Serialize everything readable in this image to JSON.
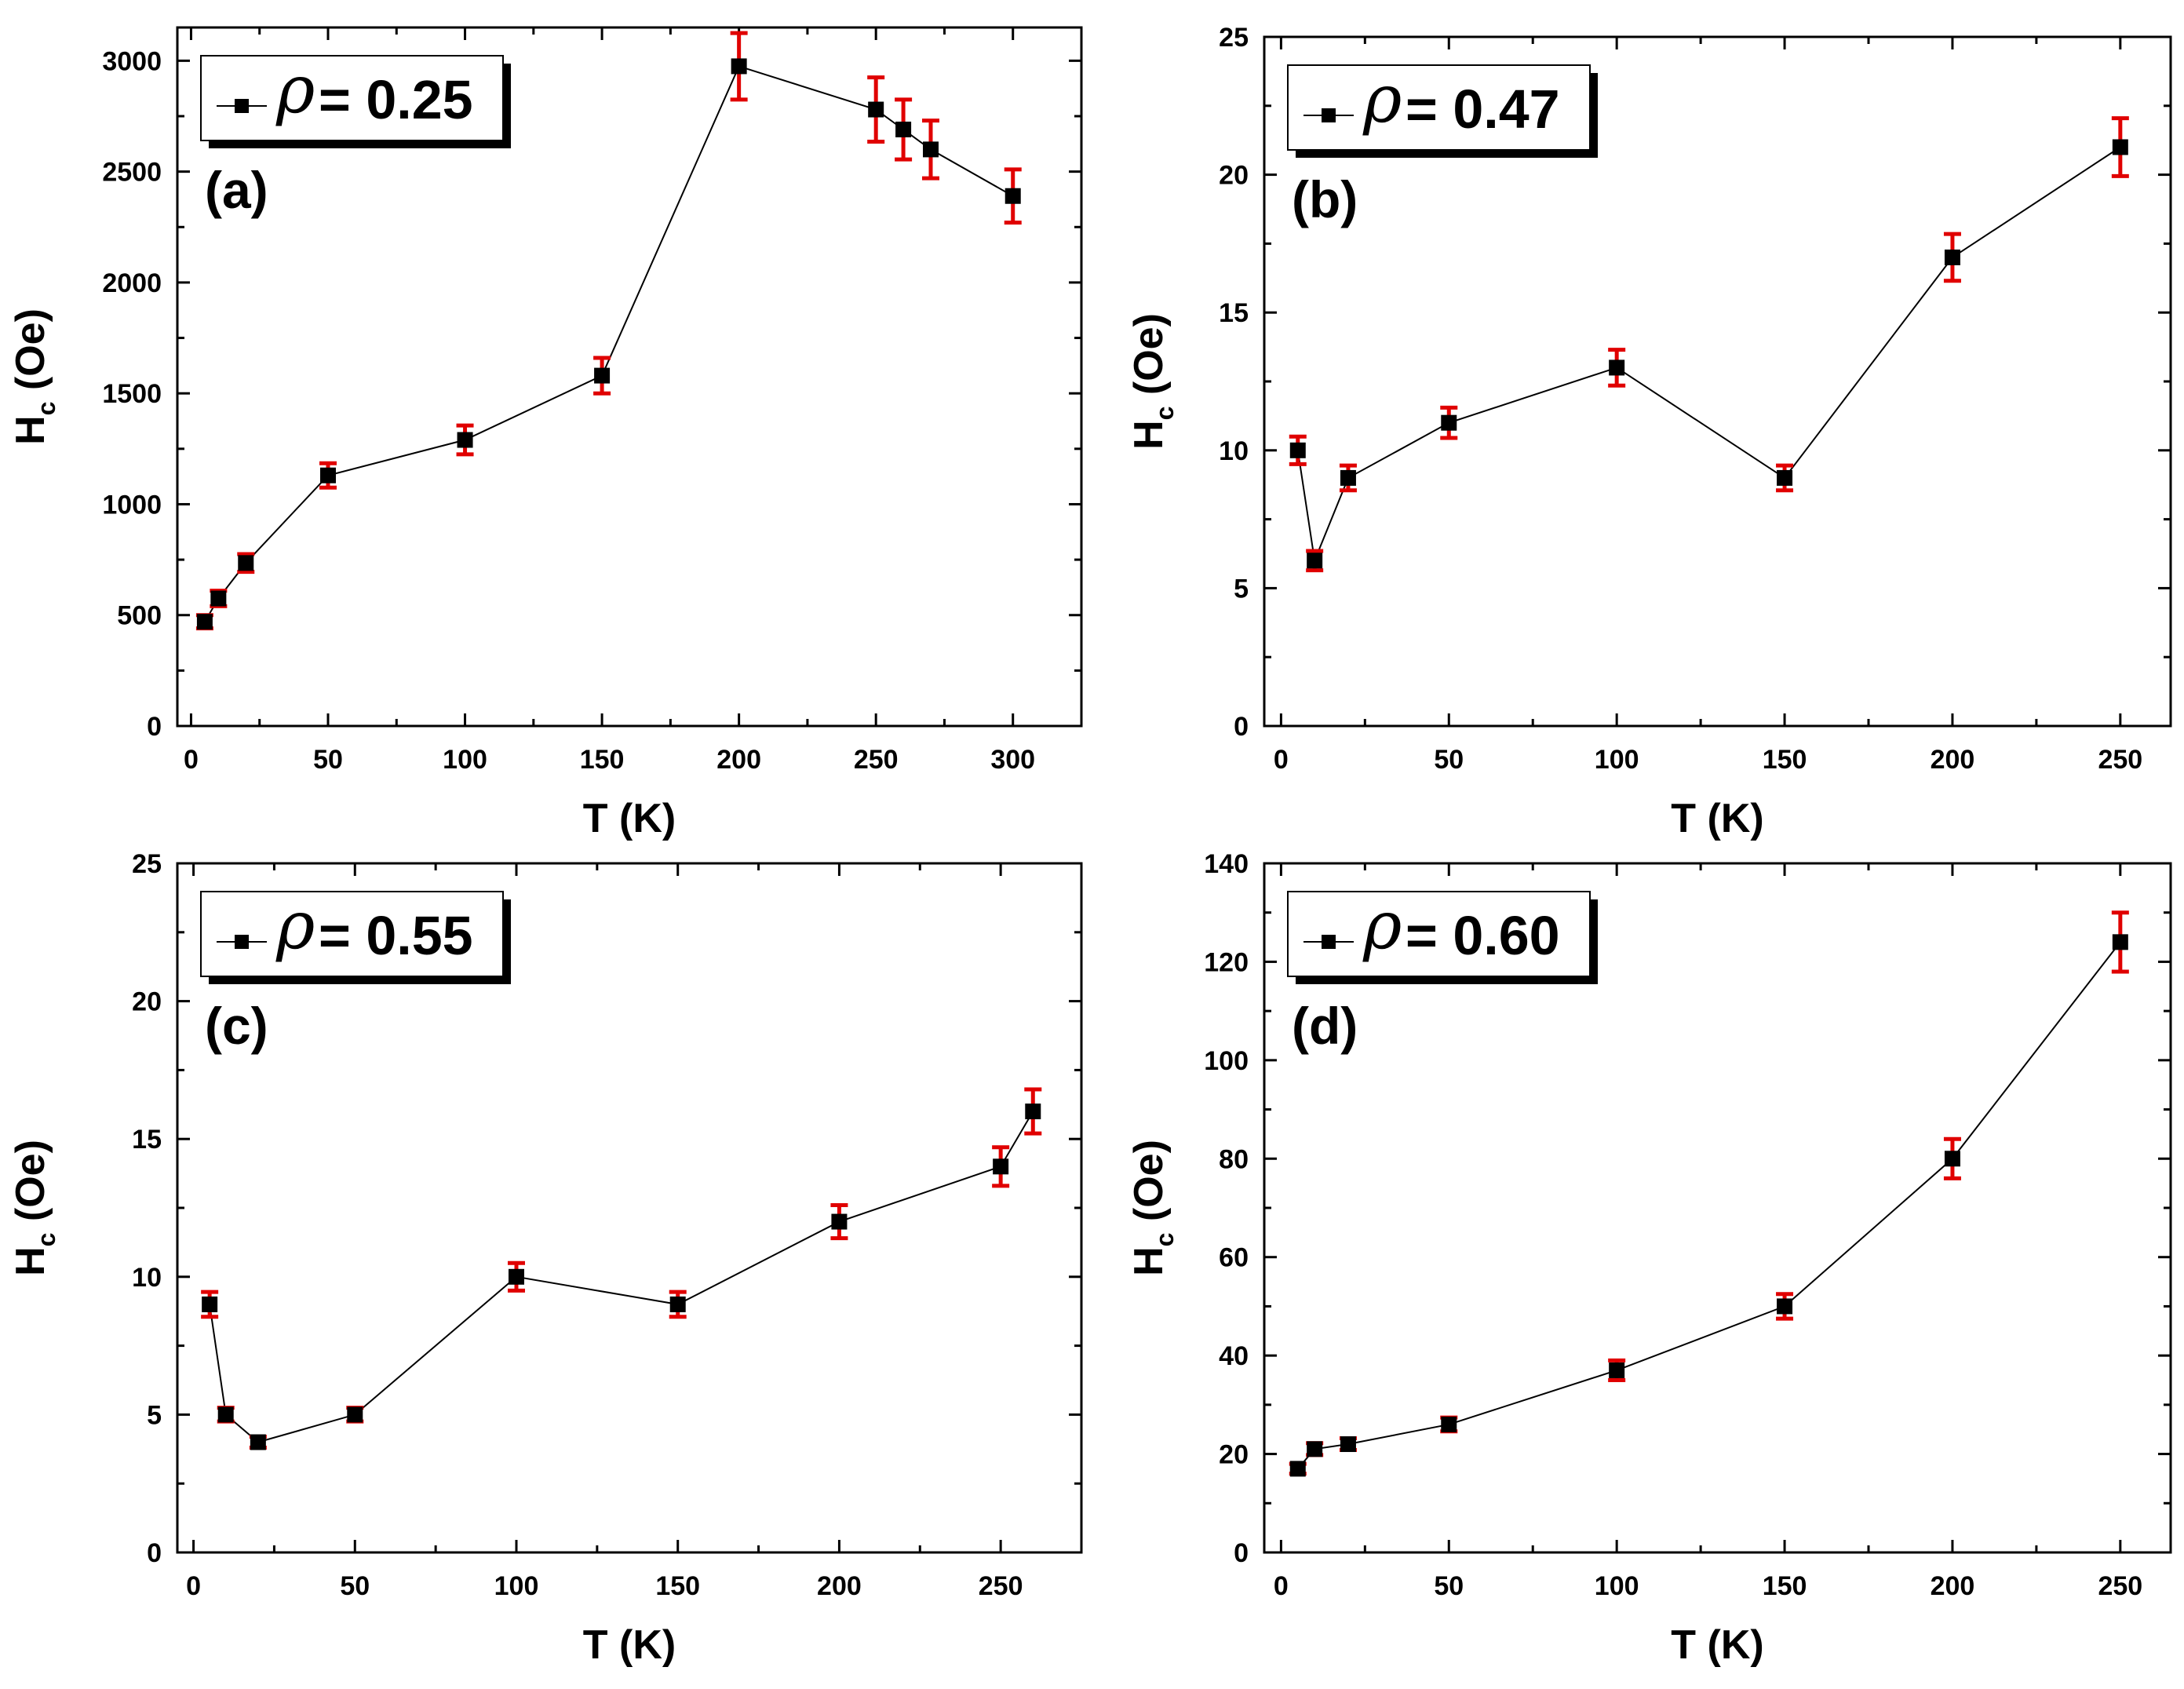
{
  "chart_data": [
    {
      "type": "scatter",
      "panel_label": "(a)",
      "legend_symbol": "ρ",
      "legend_value": "= 0.25",
      "legend_placement": "top-left",
      "xlabel": "T (K)",
      "ylabel_main": "H",
      "ylabel_sub": "c",
      "ylabel_unit": " (Oe)",
      "xlim": [
        -5,
        325
      ],
      "ylim": [
        0,
        3150
      ],
      "xticks": [
        0,
        50,
        100,
        150,
        200,
        250,
        300
      ],
      "yticks": [
        0,
        500,
        1000,
        1500,
        2000,
        2500,
        3000
      ],
      "grid": false,
      "series": [
        {
          "x": [
            5,
            10,
            20,
            50,
            100,
            150,
            200,
            250,
            260,
            270,
            300
          ],
          "y": [
            470,
            575,
            735,
            1130,
            1290,
            1580,
            2975,
            2780,
            2690,
            2600,
            2390
          ],
          "err": [
            30,
            35,
            40,
            55,
            65,
            80,
            150,
            145,
            135,
            130,
            120
          ],
          "color": "#000000",
          "error_color": "#e00000"
        }
      ]
    },
    {
      "type": "scatter",
      "panel_label": "(b)",
      "legend_symbol": "ρ",
      "legend_value": "= 0.47",
      "legend_placement": "top-left",
      "xlabel": "T (K)",
      "ylabel_main": "H",
      "ylabel_sub": "c",
      "ylabel_unit": " (Oe)",
      "xlim": [
        -5,
        265
      ],
      "ylim": [
        0,
        25
      ],
      "xticks": [
        0,
        50,
        100,
        150,
        200,
        250
      ],
      "yticks": [
        0,
        5,
        10,
        15,
        20,
        25
      ],
      "grid": false,
      "series": [
        {
          "x": [
            5,
            10,
            20,
            50,
            100,
            150,
            200,
            250
          ],
          "y": [
            10,
            6,
            9,
            11,
            13,
            9,
            17,
            21
          ],
          "err": [
            0.5,
            0.35,
            0.45,
            0.55,
            0.65,
            0.45,
            0.85,
            1.05
          ],
          "color": "#000000",
          "error_color": "#e00000"
        }
      ]
    },
    {
      "type": "scatter",
      "panel_label": "(c)",
      "legend_symbol": "ρ",
      "legend_value": "= 0.55",
      "legend_placement": "top-left",
      "xlabel": "T (K)",
      "ylabel_main": "H",
      "ylabel_sub": "c",
      "ylabel_unit": " (Oe)",
      "xlim": [
        -5,
        275
      ],
      "ylim": [
        0,
        25
      ],
      "xticks": [
        0,
        50,
        100,
        150,
        200,
        250
      ],
      "yticks": [
        0,
        5,
        10,
        15,
        20,
        25
      ],
      "grid": false,
      "series": [
        {
          "x": [
            5,
            10,
            20,
            50,
            100,
            150,
            200,
            250,
            260
          ],
          "y": [
            9,
            5,
            4,
            5,
            10,
            9,
            12,
            14,
            16
          ],
          "err": [
            0.45,
            0.25,
            0.2,
            0.25,
            0.5,
            0.45,
            0.6,
            0.7,
            0.8
          ],
          "color": "#000000",
          "error_color": "#e00000"
        }
      ]
    },
    {
      "type": "scatter",
      "panel_label": "(d)",
      "legend_symbol": "ρ",
      "legend_value": "= 0.60",
      "legend_placement": "top-left",
      "xlabel": "T (K)",
      "ylabel_main": "H",
      "ylabel_sub": "c",
      "ylabel_unit": " (Oe)",
      "xlim": [
        -5,
        265
      ],
      "ylim": [
        0,
        140
      ],
      "xticks": [
        0,
        50,
        100,
        150,
        200,
        250
      ],
      "yticks": [
        0,
        20,
        40,
        60,
        80,
        100,
        120,
        140
      ],
      "grid": false,
      "series": [
        {
          "x": [
            5,
            10,
            20,
            50,
            100,
            150,
            200,
            250
          ],
          "y": [
            17,
            21,
            22,
            26,
            37,
            50,
            80,
            124
          ],
          "err": [
            1,
            1.2,
            1.2,
            1.4,
            2,
            2.5,
            4,
            6
          ],
          "color": "#000000",
          "error_color": "#e00000"
        }
      ]
    }
  ]
}
